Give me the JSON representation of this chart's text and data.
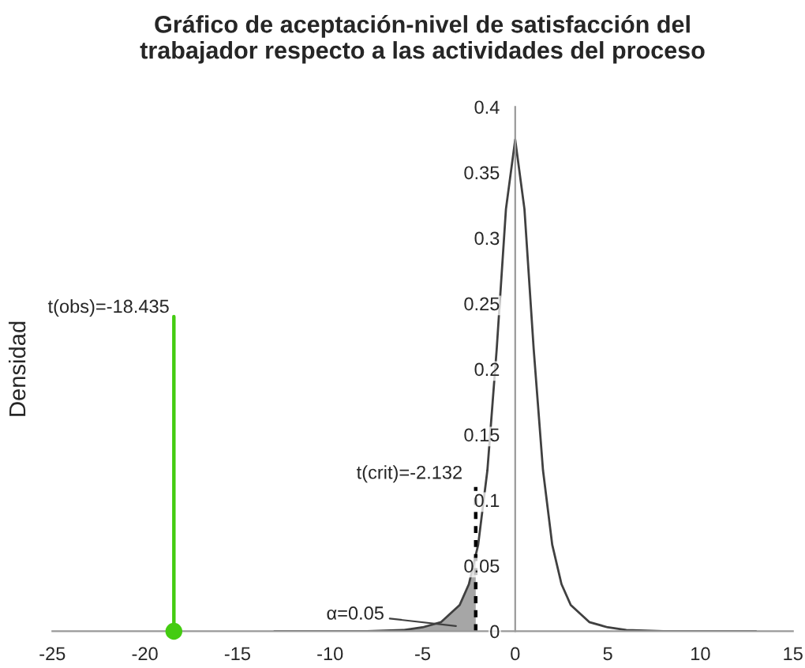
{
  "chart_data": {
    "type": "line",
    "title": "Gráfico de aceptación-nivel de satisfacción del\ntrabajador respecto a las actividades del proceso",
    "ylabel": "Densidad",
    "xlim": [
      -25,
      15
    ],
    "ylim": [
      0,
      0.4
    ],
    "xticks": [
      -25,
      -20,
      -15,
      -10,
      -5,
      0,
      5,
      10,
      15
    ],
    "yticks": [
      0,
      0.05,
      0.1,
      0.15,
      0.2,
      0.25,
      0.3,
      0.35,
      0.4
    ],
    "grid": false,
    "legend": false,
    "series": [
      {
        "type": "area",
        "color": "#a6a6a6",
        "x": [
          -13,
          -10,
          -8,
          -6,
          -5,
          -4,
          -3,
          -2.5,
          -2.132
        ],
        "values": [
          0.0,
          0.0,
          0.0,
          0.001,
          0.003,
          0.007,
          0.02,
          0.036,
          0.056
        ]
      },
      {
        "color": "#404040",
        "x": [
          -13,
          -10,
          -8,
          -6,
          -5,
          -4,
          -3,
          -2.5,
          -2,
          -1.5,
          -1,
          -0.5,
          0,
          0.5,
          1,
          1.5,
          2,
          2.5,
          3,
          4,
          5,
          6,
          8,
          10,
          13
        ],
        "values": [
          0.0,
          0.0,
          0.0,
          0.001,
          0.003,
          0.007,
          0.02,
          0.036,
          0.066,
          0.123,
          0.215,
          0.322,
          0.375,
          0.322,
          0.215,
          0.123,
          0.066,
          0.036,
          0.02,
          0.007,
          0.003,
          0.001,
          0.0,
          0.0,
          0.0
        ]
      },
      {
        "type": "line",
        "color": "#000000",
        "line_style": "dashed",
        "x": [
          -2.132,
          -2.132
        ],
        "values": [
          0,
          0.11
        ]
      },
      {
        "type": "line",
        "color": "#44cc11",
        "x": [
          -18.435,
          -18.435
        ],
        "values": [
          0,
          0.24
        ]
      },
      {
        "type": "scatter",
        "color": "#44cc11",
        "marker": "circle",
        "x": [
          -18.435
        ],
        "values": [
          0
        ]
      }
    ],
    "annotations": [
      {
        "text": "t(obs)=-18.435",
        "x": -18.435,
        "y": 0.24
      },
      {
        "text": "t(crit)=-2.132",
        "x": -2.132,
        "y": 0.11
      },
      "α=0.05"
    ]
  }
}
